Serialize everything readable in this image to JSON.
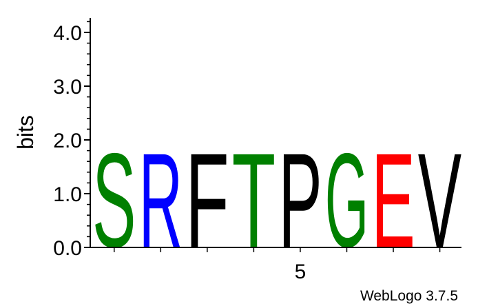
{
  "chart_data": {
    "type": "sequence-logo",
    "ylabel": "bits",
    "ylim": [
      0,
      4.3
    ],
    "y_ticks": [
      "0.0",
      "1.0",
      "2.0",
      "3.0",
      "4.0"
    ],
    "y_tick_values": [
      0,
      1,
      2,
      3,
      4
    ],
    "x_ticks": [
      {
        "position": 5,
        "label": "5"
      }
    ],
    "positions": [
      1,
      2,
      3,
      4,
      5,
      6,
      7,
      8
    ],
    "letters": [
      {
        "position": 1,
        "letter": "S",
        "bits": 1.8,
        "color": "#008000"
      },
      {
        "position": 2,
        "letter": "R",
        "bits": 1.8,
        "color": "#0000ff"
      },
      {
        "position": 3,
        "letter": "F",
        "bits": 1.8,
        "color": "#000000"
      },
      {
        "position": 4,
        "letter": "T",
        "bits": 1.8,
        "color": "#008000"
      },
      {
        "position": 5,
        "letter": "P",
        "bits": 1.8,
        "color": "#000000"
      },
      {
        "position": 6,
        "letter": "G",
        "bits": 1.8,
        "color": "#008000"
      },
      {
        "position": 7,
        "letter": "E",
        "bits": 1.8,
        "color": "#ff0000"
      },
      {
        "position": 8,
        "letter": "V",
        "bits": 1.8,
        "color": "#000000"
      }
    ]
  },
  "credit": "WebLogo 3.7.5"
}
